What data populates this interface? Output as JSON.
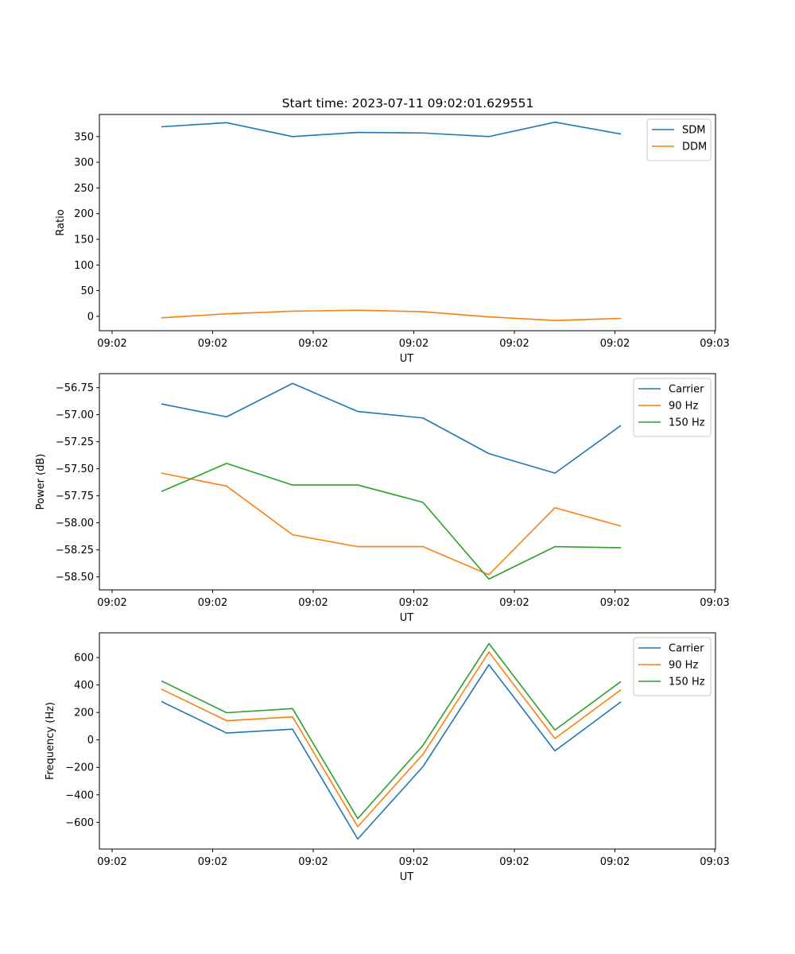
{
  "chart_data": [
    {
      "type": "line",
      "title": "Start time: 2023-07-11 09:02:01.629551",
      "xlabel": "UT",
      "ylabel": "Ratio",
      "x_tick_labels": [
        "09:02",
        "09:02",
        "09:02",
        "09:02",
        "09:02",
        "09:02",
        "09:03"
      ],
      "y_ticks": [
        0,
        50,
        100,
        150,
        200,
        250,
        300,
        350
      ],
      "ylim": [
        -28,
        393
      ],
      "x_index_range": [
        -0.75,
        8.55
      ],
      "legend_position": "top-right",
      "series": [
        {
          "name": "SDM",
          "color": "#1f77b4",
          "values": [
            369,
            377,
            350,
            358,
            357,
            350,
            378,
            355
          ]
        },
        {
          "name": "DDM",
          "color": "#ff7f0e",
          "values": [
            -3,
            5,
            10,
            12,
            9,
            -1,
            -8,
            -4
          ]
        }
      ]
    },
    {
      "type": "line",
      "title": "",
      "xlabel": "UT",
      "ylabel": "Power (dB)",
      "x_tick_labels": [
        "09:02",
        "09:02",
        "09:02",
        "09:02",
        "09:02",
        "09:02",
        "09:03"
      ],
      "y_ticks": [
        -58.5,
        -58.25,
        -58.0,
        -57.75,
        -57.5,
        -57.25,
        -57.0,
        -56.75
      ],
      "y_tick_labels": [
        "−58.50",
        "−58.25",
        "−58.00",
        "−57.75",
        "−57.50",
        "−57.25",
        "−57.00",
        "−56.75"
      ],
      "ylim": [
        -58.62,
        -56.62
      ],
      "x_index_range": [
        -0.75,
        8.55
      ],
      "legend_position": "top-right",
      "series": [
        {
          "name": "Carrier",
          "color": "#1f77b4",
          "values": [
            -56.9,
            -57.02,
            -56.71,
            -56.97,
            -57.03,
            -57.36,
            -57.54,
            -57.1
          ]
        },
        {
          "name": "90 Hz",
          "color": "#ff7f0e",
          "values": [
            -57.54,
            -57.66,
            -58.11,
            -58.22,
            -58.22,
            -58.48,
            -57.86,
            -58.03
          ]
        },
        {
          "name": "150 Hz",
          "color": "#2ca02c",
          "values": [
            -57.71,
            -57.45,
            -57.65,
            -57.65,
            -57.81,
            -58.52,
            -58.22,
            -58.23
          ]
        }
      ]
    },
    {
      "type": "line",
      "title": "",
      "xlabel": "UT",
      "ylabel": "Frequency (Hz)",
      "x_tick_labels": [
        "09:02",
        "09:02",
        "09:02",
        "09:02",
        "09:02",
        "09:02",
        "09:03"
      ],
      "y_ticks": [
        -600,
        -400,
        -200,
        0,
        200,
        400,
        600
      ],
      "y_tick_labels": [
        "−600",
        "−400",
        "−200",
        "0",
        "200",
        "400",
        "600"
      ],
      "ylim": [
        -795,
        780
      ],
      "x_index_range": [
        -0.75,
        8.55
      ],
      "legend_position": "top-right",
      "series": [
        {
          "name": "Carrier",
          "color": "#1f77b4",
          "values": [
            280,
            50,
            78,
            -722,
            -195,
            548,
            -80,
            277
          ]
        },
        {
          "name": "90 Hz",
          "color": "#ff7f0e",
          "values": [
            370,
            140,
            168,
            -632,
            -105,
            640,
            10,
            365
          ]
        },
        {
          "name": "150 Hz",
          "color": "#2ca02c",
          "values": [
            430,
            198,
            228,
            -573,
            -40,
            702,
            72,
            425
          ]
        }
      ]
    }
  ]
}
